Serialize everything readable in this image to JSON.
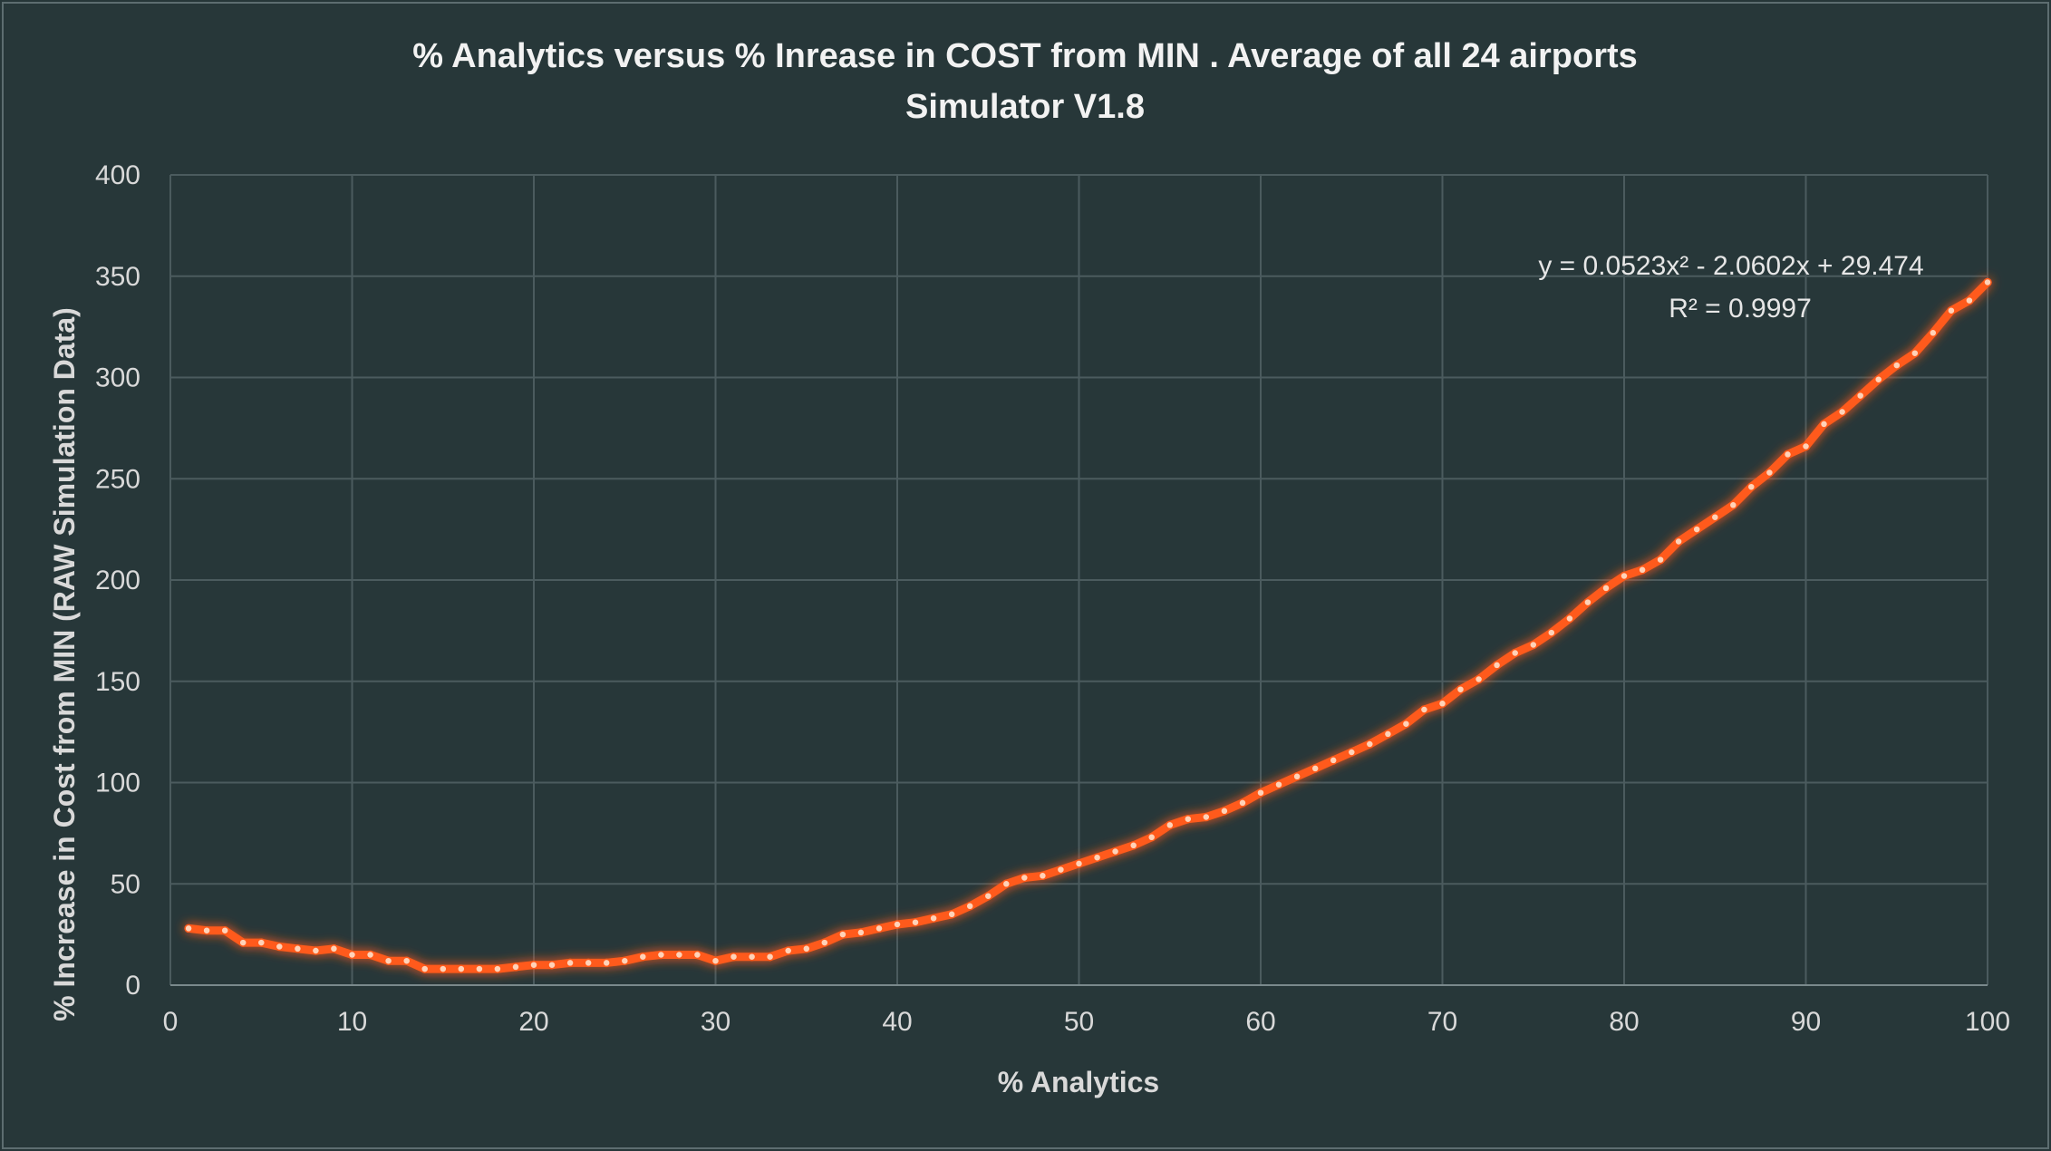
{
  "chart_data": {
    "type": "scatter",
    "title": "% Analytics versus % Inrease in COST from MIN . Average of all 24 airports",
    "subtitle": "Simulator V1.8",
    "xlabel": "% Analytics",
    "ylabel": "% Increase in Cost from MIN (RAW Simulation Data)",
    "xlim": [
      0,
      100
    ],
    "ylim": [
      0,
      400
    ],
    "x_ticks": [
      "0",
      "10",
      "20",
      "30",
      "40",
      "50",
      "60",
      "70",
      "80",
      "90",
      "100"
    ],
    "y_ticks": [
      "0",
      "50",
      "100",
      "150",
      "200",
      "250",
      "300",
      "350",
      "400"
    ],
    "grid": true,
    "legend": "none",
    "trendline": {
      "type": "polynomial order 2",
      "equation": "y = 0.0523x² - 2.0602x + 29.474",
      "r_squared": "R² = 0.9997"
    },
    "series": [
      {
        "color": "#ff5a1a",
        "points": [
          [
            1,
            28
          ],
          [
            2,
            27
          ],
          [
            3,
            27
          ],
          [
            4,
            21
          ],
          [
            5,
            21
          ],
          [
            6,
            19
          ],
          [
            7,
            18
          ],
          [
            8,
            17
          ],
          [
            9,
            18
          ],
          [
            10,
            15
          ],
          [
            11,
            15
          ],
          [
            12,
            12
          ],
          [
            13,
            12
          ],
          [
            14,
            8
          ],
          [
            15,
            8
          ],
          [
            16,
            8
          ],
          [
            17,
            8
          ],
          [
            18,
            8
          ],
          [
            19,
            9
          ],
          [
            20,
            10
          ],
          [
            21,
            10
          ],
          [
            22,
            11
          ],
          [
            23,
            11
          ],
          [
            24,
            11
          ],
          [
            25,
            12
          ],
          [
            26,
            14
          ],
          [
            27,
            15
          ],
          [
            28,
            15
          ],
          [
            29,
            15
          ],
          [
            30,
            12
          ],
          [
            31,
            14
          ],
          [
            32,
            14
          ],
          [
            33,
            14
          ],
          [
            34,
            17
          ],
          [
            35,
            18
          ],
          [
            36,
            21
          ],
          [
            37,
            25
          ],
          [
            38,
            26
          ],
          [
            39,
            28
          ],
          [
            40,
            30
          ],
          [
            41,
            31
          ],
          [
            42,
            33
          ],
          [
            43,
            35
          ],
          [
            44,
            39
          ],
          [
            45,
            44
          ],
          [
            46,
            50
          ],
          [
            47,
            53
          ],
          [
            48,
            54
          ],
          [
            49,
            57
          ],
          [
            50,
            60
          ],
          [
            51,
            63
          ],
          [
            52,
            66
          ],
          [
            53,
            69
          ],
          [
            54,
            73
          ],
          [
            55,
            79
          ],
          [
            56,
            82
          ],
          [
            57,
            83
          ],
          [
            58,
            86
          ],
          [
            59,
            90
          ],
          [
            60,
            95
          ],
          [
            61,
            99
          ],
          [
            62,
            103
          ],
          [
            63,
            107
          ],
          [
            64,
            111
          ],
          [
            65,
            115
          ],
          [
            66,
            119
          ],
          [
            67,
            124
          ],
          [
            68,
            129
          ],
          [
            69,
            136
          ],
          [
            70,
            139
          ],
          [
            71,
            146
          ],
          [
            72,
            151
          ],
          [
            73,
            158
          ],
          [
            74,
            164
          ],
          [
            75,
            168
          ],
          [
            76,
            174
          ],
          [
            77,
            181
          ],
          [
            78,
            189
          ],
          [
            79,
            196
          ],
          [
            80,
            202
          ],
          [
            81,
            205
          ],
          [
            82,
            210
          ],
          [
            83,
            219
          ],
          [
            84,
            225
          ],
          [
            85,
            231
          ],
          [
            86,
            237
          ],
          [
            87,
            246
          ],
          [
            88,
            253
          ],
          [
            89,
            262
          ],
          [
            90,
            266
          ],
          [
            91,
            277
          ],
          [
            92,
            283
          ],
          [
            93,
            291
          ],
          [
            94,
            299
          ],
          [
            95,
            306
          ],
          [
            96,
            312
          ],
          [
            97,
            322
          ],
          [
            98,
            333
          ],
          [
            99,
            338
          ],
          [
            100,
            347
          ]
        ]
      }
    ]
  }
}
